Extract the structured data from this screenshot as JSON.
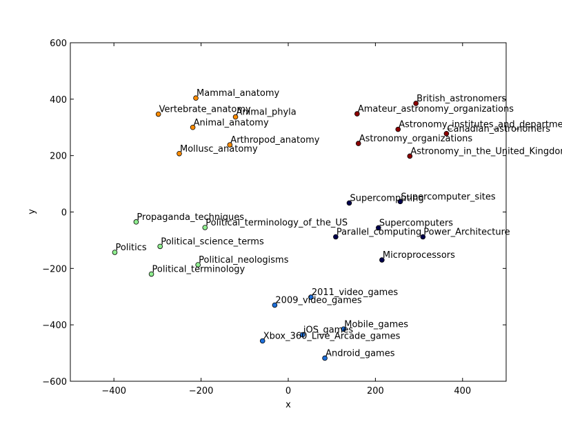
{
  "chart_data": {
    "type": "scatter",
    "title": "",
    "xlabel": "x",
    "ylabel": "y",
    "xlim": [
      -500,
      500
    ],
    "ylim": [
      -600,
      600
    ],
    "xticks": [
      -400,
      -200,
      0,
      200,
      400
    ],
    "yticks": [
      -600,
      -400,
      -200,
      0,
      200,
      400,
      600
    ],
    "xtick_labels": [
      "−400",
      "−200",
      "0",
      "200",
      "400"
    ],
    "ytick_labels": [
      "−600",
      "−400",
      "−200",
      "0",
      "200",
      "400",
      "600"
    ],
    "grid": false,
    "legend": "none",
    "colors": {
      "anatomy": "#ff8c00",
      "astronomy": "#8b0000",
      "computing": "#00004d",
      "politics": "#90ee90",
      "games": "#1e6fd9"
    },
    "points": [
      {
        "label": "Mammal_anatomy",
        "x": -212,
        "y": 404,
        "group": "anatomy"
      },
      {
        "label": "Vertebrate_anatomy",
        "x": -298,
        "y": 347,
        "group": "anatomy"
      },
      {
        "label": "Animal_phyla",
        "x": -121,
        "y": 337,
        "group": "anatomy"
      },
      {
        "label": "Animal_anatomy",
        "x": -219,
        "y": 300,
        "group": "anatomy"
      },
      {
        "label": "Arthropod_anatomy",
        "x": -134,
        "y": 238,
        "group": "anatomy"
      },
      {
        "label": "Mollusc_anatomy",
        "x": -250,
        "y": 207,
        "group": "anatomy"
      },
      {
        "label": "British_astronomers",
        "x": 293,
        "y": 385,
        "group": "astronomy"
      },
      {
        "label": "Amateur_astronomy_organizations",
        "x": 158,
        "y": 348,
        "group": "astronomy"
      },
      {
        "label": "Astronomy_institutes_and_departments",
        "x": 252,
        "y": 293,
        "group": "astronomy"
      },
      {
        "label": "Canadian_astronomers",
        "x": 363,
        "y": 278,
        "group": "astronomy"
      },
      {
        "label": "Astronomy_organizations",
        "x": 161,
        "y": 243,
        "group": "astronomy"
      },
      {
        "label": "Astronomy_in_the_United_Kingdom",
        "x": 279,
        "y": 198,
        "group": "astronomy"
      },
      {
        "label": "Supercomputing",
        "x": 140,
        "y": 32,
        "group": "computing"
      },
      {
        "label": "Supercomputer_sites",
        "x": 257,
        "y": 37,
        "group": "computing"
      },
      {
        "label": "Supercomputers",
        "x": 207,
        "y": -56,
        "group": "computing"
      },
      {
        "label": "Parallel_computing",
        "x": 109,
        "y": -88,
        "group": "computing"
      },
      {
        "label": "Power_Architecture",
        "x": 309,
        "y": -88,
        "group": "computing"
      },
      {
        "label": "Microprocessors",
        "x": 215,
        "y": -170,
        "group": "computing"
      },
      {
        "label": "Propaganda_techniques",
        "x": -349,
        "y": -35,
        "group": "politics"
      },
      {
        "label": "Political_terminology_of_the_US",
        "x": -191,
        "y": -55,
        "group": "politics"
      },
      {
        "label": "Politics",
        "x": -398,
        "y": -143,
        "group": "politics"
      },
      {
        "label": "Political_science_terms",
        "x": -294,
        "y": -122,
        "group": "politics"
      },
      {
        "label": "Political_neologisms",
        "x": -207,
        "y": -187,
        "group": "politics"
      },
      {
        "label": "Political_terminology",
        "x": -314,
        "y": -220,
        "group": "politics"
      },
      {
        "label": "2011_video_games",
        "x": 52,
        "y": -302,
        "group": "games"
      },
      {
        "label": "2009_video_games",
        "x": -31,
        "y": -330,
        "group": "games"
      },
      {
        "label": "Mobile_games",
        "x": 127,
        "y": -415,
        "group": "games"
      },
      {
        "label": "iOS_games",
        "x": 33,
        "y": -435,
        "group": "games"
      },
      {
        "label": "Xbox_360_Live_Arcade_games",
        "x": -59,
        "y": -457,
        "group": "games"
      },
      {
        "label": "Android_games",
        "x": 84,
        "y": -518,
        "group": "games"
      }
    ]
  }
}
